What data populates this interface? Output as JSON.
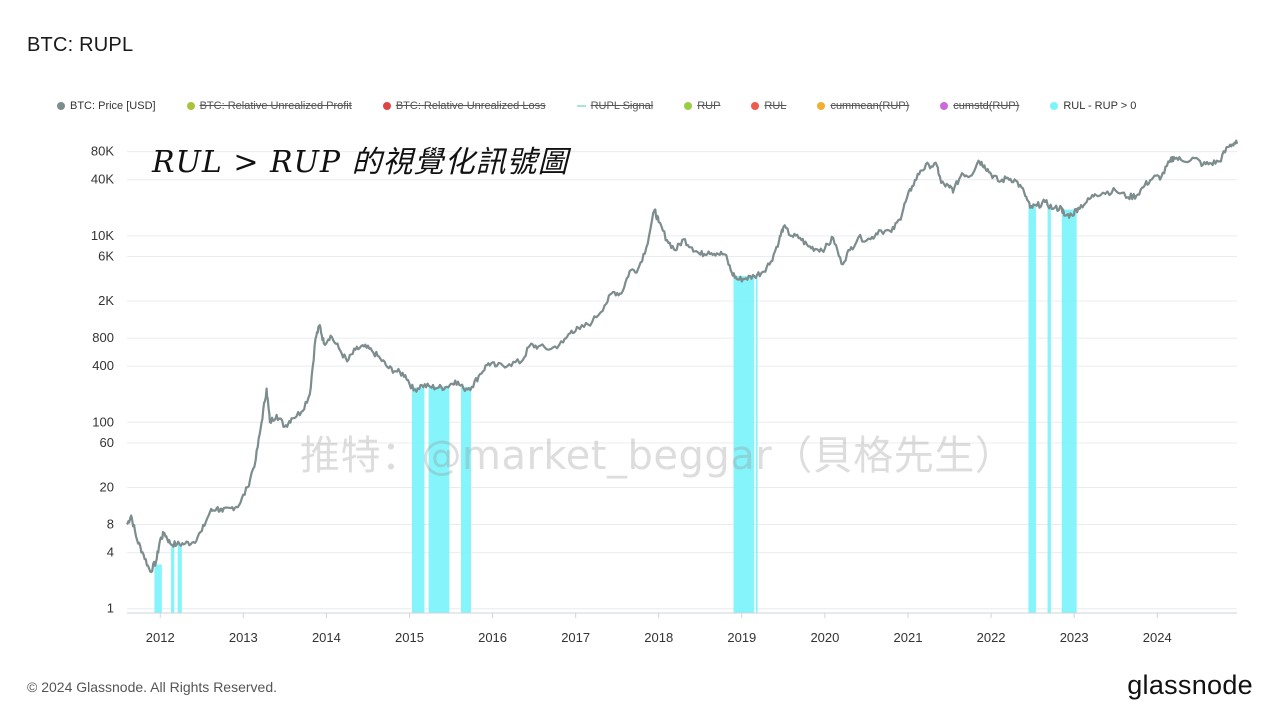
{
  "page": {
    "title": "BTC: RUPL",
    "annotation": "RUL > RUP 的視覺化訊號圖",
    "watermark": "推特：@market_beggar（貝格先生）",
    "copyright": "© 2024 Glassnode. All Rights Reserved.",
    "brand": "glassnode"
  },
  "legend": [
    {
      "label": "BTC: Price [USD]",
      "color": "#7d8c8c",
      "shape": "dot",
      "active": true
    },
    {
      "label": "BTC: Relative Unrealized Profit",
      "color": "#a8c43a",
      "shape": "dot",
      "active": false
    },
    {
      "label": "BTC: Relative Unrealized Loss",
      "color": "#e04545",
      "shape": "dot",
      "active": false
    },
    {
      "label": "RUPL Signal",
      "color": "#a9e4cf",
      "shape": "line",
      "active": false
    },
    {
      "label": "RUP",
      "color": "#9ccc45",
      "shape": "dot",
      "active": false
    },
    {
      "label": "RUL",
      "color": "#ef5b4c",
      "shape": "dot",
      "active": false
    },
    {
      "label": "cummean(RUP)",
      "color": "#f0b030",
      "shape": "dot",
      "active": false
    },
    {
      "label": "cumstd(RUP)",
      "color": "#cc6bd8",
      "shape": "dot",
      "active": false
    },
    {
      "label": "RUL - RUP > 0",
      "color": "#7ef3fb",
      "shape": "dot",
      "active": true
    }
  ],
  "colors": {
    "price": "#7d8c8c",
    "signal": "#7ef3fb",
    "grid": "#e9ecef",
    "axis": "#cfd4d9"
  },
  "chart_data": {
    "type": "line",
    "y_scale": "log",
    "ylim": [
      0.9,
      130000
    ],
    "xlim": [
      2011.6,
      2024.96
    ],
    "y_ticks": [
      {
        "label": "1",
        "value": 1
      },
      {
        "label": "4",
        "value": 4
      },
      {
        "label": "8",
        "value": 8
      },
      {
        "label": "20",
        "value": 20
      },
      {
        "label": "60",
        "value": 60
      },
      {
        "label": "100",
        "value": 100
      },
      {
        "label": "400",
        "value": 400
      },
      {
        "label": "800",
        "value": 800
      },
      {
        "label": "2K",
        "value": 2000
      },
      {
        "label": "6K",
        "value": 6000
      },
      {
        "label": "10K",
        "value": 10000
      },
      {
        "label": "40K",
        "value": 40000
      },
      {
        "label": "80K",
        "value": 80000
      }
    ],
    "x_ticks": [
      {
        "label": "2012",
        "value": 2012
      },
      {
        "label": "2013",
        "value": 2013
      },
      {
        "label": "2014",
        "value": 2014
      },
      {
        "label": "2015",
        "value": 2015
      },
      {
        "label": "2016",
        "value": 2016
      },
      {
        "label": "2017",
        "value": 2017
      },
      {
        "label": "2018",
        "value": 2018
      },
      {
        "label": "2019",
        "value": 2019
      },
      {
        "label": "2020",
        "value": 2020
      },
      {
        "label": "2021",
        "value": 2021
      },
      {
        "label": "2022",
        "value": 2022
      },
      {
        "label": "2023",
        "value": 2023
      },
      {
        "label": "2024",
        "value": 2024
      }
    ],
    "series": [
      {
        "name": "BTC: Price [USD]",
        "points": [
          [
            2011.6,
            8
          ],
          [
            2011.65,
            10
          ],
          [
            2011.72,
            5.5
          ],
          [
            2011.8,
            3.8
          ],
          [
            2011.88,
            2.5
          ],
          [
            2011.95,
            3.2
          ],
          [
            2012.0,
            5.5
          ],
          [
            2012.05,
            6.5
          ],
          [
            2012.12,
            5.0
          ],
          [
            2012.2,
            4.9
          ],
          [
            2012.3,
            5.0
          ],
          [
            2012.4,
            5.2
          ],
          [
            2012.5,
            6.8
          ],
          [
            2012.6,
            11
          ],
          [
            2012.68,
            12
          ],
          [
            2012.75,
            11
          ],
          [
            2012.85,
            12
          ],
          [
            2012.95,
            13
          ],
          [
            2013.05,
            20
          ],
          [
            2013.15,
            40
          ],
          [
            2013.22,
            100
          ],
          [
            2013.28,
            230
          ],
          [
            2013.32,
            100
          ],
          [
            2013.4,
            120
          ],
          [
            2013.5,
            90
          ],
          [
            2013.58,
            110
          ],
          [
            2013.7,
            130
          ],
          [
            2013.8,
            200
          ],
          [
            2013.87,
            800
          ],
          [
            2013.92,
            1100
          ],
          [
            2013.97,
            700
          ],
          [
            2014.05,
            850
          ],
          [
            2014.15,
            620
          ],
          [
            2014.25,
            450
          ],
          [
            2014.35,
            600
          ],
          [
            2014.45,
            650
          ],
          [
            2014.55,
            580
          ],
          [
            2014.65,
            480
          ],
          [
            2014.75,
            380
          ],
          [
            2014.85,
            350
          ],
          [
            2014.95,
            320
          ],
          [
            2015.05,
            220
          ],
          [
            2015.15,
            250
          ],
          [
            2015.25,
            240
          ],
          [
            2015.35,
            235
          ],
          [
            2015.45,
            240
          ],
          [
            2015.55,
            280
          ],
          [
            2015.65,
            230
          ],
          [
            2015.75,
            240
          ],
          [
            2015.85,
            330
          ],
          [
            2015.95,
            430
          ],
          [
            2016.05,
            400
          ],
          [
            2016.2,
            420
          ],
          [
            2016.35,
            450
          ],
          [
            2016.45,
            670
          ],
          [
            2016.55,
            650
          ],
          [
            2016.7,
            610
          ],
          [
            2016.85,
            720
          ],
          [
            2016.95,
            960
          ],
          [
            2017.05,
            1000
          ],
          [
            2017.2,
            1200
          ],
          [
            2017.35,
            1800
          ],
          [
            2017.45,
            2500
          ],
          [
            2017.55,
            2400
          ],
          [
            2017.65,
            4200
          ],
          [
            2017.75,
            4400
          ],
          [
            2017.85,
            7500
          ],
          [
            2017.95,
            19000
          ],
          [
            2018.0,
            14000
          ],
          [
            2018.1,
            9000
          ],
          [
            2018.2,
            7000
          ],
          [
            2018.3,
            9200
          ],
          [
            2018.4,
            7500
          ],
          [
            2018.5,
            6300
          ],
          [
            2018.6,
            6800
          ],
          [
            2018.7,
            6500
          ],
          [
            2018.8,
            6300
          ],
          [
            2018.88,
            4000
          ],
          [
            2018.95,
            3400
          ],
          [
            2019.05,
            3500
          ],
          [
            2019.15,
            3700
          ],
          [
            2019.25,
            4100
          ],
          [
            2019.35,
            5300
          ],
          [
            2019.45,
            9000
          ],
          [
            2019.5,
            12500
          ],
          [
            2019.6,
            10000
          ],
          [
            2019.7,
            9500
          ],
          [
            2019.8,
            7700
          ],
          [
            2019.9,
            7200
          ],
          [
            2020.0,
            7300
          ],
          [
            2020.1,
            9500
          ],
          [
            2020.2,
            5000
          ],
          [
            2020.3,
            7000
          ],
          [
            2020.4,
            9500
          ],
          [
            2020.55,
            9200
          ],
          [
            2020.65,
            11500
          ],
          [
            2020.8,
            11000
          ],
          [
            2020.9,
            15000
          ],
          [
            2020.97,
            23000
          ],
          [
            2021.05,
            34000
          ],
          [
            2021.15,
            50000
          ],
          [
            2021.25,
            58000
          ],
          [
            2021.35,
            56000
          ],
          [
            2021.4,
            37000
          ],
          [
            2021.5,
            33000
          ],
          [
            2021.55,
            31000
          ],
          [
            2021.65,
            47000
          ],
          [
            2021.75,
            44000
          ],
          [
            2021.85,
            64000
          ],
          [
            2021.92,
            57000
          ],
          [
            2022.0,
            46000
          ],
          [
            2022.1,
            38000
          ],
          [
            2022.2,
            42000
          ],
          [
            2022.3,
            39000
          ],
          [
            2022.4,
            29000
          ],
          [
            2022.47,
            20000
          ],
          [
            2022.55,
            21000
          ],
          [
            2022.65,
            23000
          ],
          [
            2022.75,
            19500
          ],
          [
            2022.85,
            20000
          ],
          [
            2022.88,
            16500
          ],
          [
            2022.97,
            16800
          ],
          [
            2023.05,
            20000
          ],
          [
            2023.15,
            23000
          ],
          [
            2023.25,
            28000
          ],
          [
            2023.35,
            29000
          ],
          [
            2023.5,
            30500
          ],
          [
            2023.65,
            26000
          ],
          [
            2023.75,
            27000
          ],
          [
            2023.85,
            35000
          ],
          [
            2023.95,
            42000
          ],
          [
            2024.05,
            43000
          ],
          [
            2024.15,
            62000
          ],
          [
            2024.2,
            70000
          ],
          [
            2024.3,
            64000
          ],
          [
            2024.45,
            68000
          ],
          [
            2024.55,
            58000
          ],
          [
            2024.65,
            60000
          ],
          [
            2024.75,
            63000
          ],
          [
            2024.85,
            90000
          ],
          [
            2024.93,
            100000
          ],
          [
            2024.96,
            97000
          ]
        ]
      }
    ],
    "signal_periods": [
      [
        2011.93,
        2012.02
      ],
      [
        2012.13,
        2012.17
      ],
      [
        2012.21,
        2012.26
      ],
      [
        2015.03,
        2015.18
      ],
      [
        2015.23,
        2015.48
      ],
      [
        2015.62,
        2015.74
      ],
      [
        2018.9,
        2019.15
      ],
      [
        2019.17,
        2019.19
      ],
      [
        2022.45,
        2022.54
      ],
      [
        2022.68,
        2022.72
      ],
      [
        2022.85,
        2023.03
      ]
    ]
  }
}
